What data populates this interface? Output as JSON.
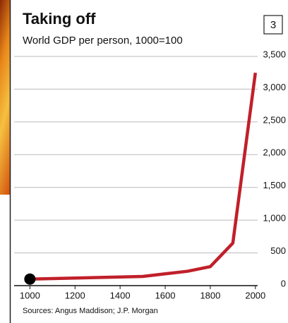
{
  "chart_data": {
    "type": "line",
    "title": "Taking off",
    "subtitle": "World GDP per person, 1000=100",
    "chart_number": "3",
    "source": "Sources: Angus Maddison; J.P. Morgan",
    "x": [
      1000,
      1500,
      1600,
      1700,
      1800,
      1900,
      2000
    ],
    "values": [
      100,
      140,
      180,
      220,
      290,
      650,
      3250
    ],
    "color": "#c0202a",
    "marker_color": "#000000",
    "xlim": [
      930,
      2010
    ],
    "xticks": [
      1000,
      1200,
      1400,
      1600,
      1800,
      2000
    ],
    "ylim": [
      0,
      3500
    ],
    "yticks": [
      0,
      500,
      {
        "value": 1000,
        "label": "1,000"
      },
      {
        "value": 1500,
        "label": "1,500"
      },
      {
        "value": 2000,
        "label": "2,000"
      },
      {
        "value": 2500,
        "label": "2,500"
      },
      {
        "value": 3000,
        "label": "3,000"
      },
      {
        "value": 3500,
        "label": "3,500"
      }
    ],
    "grid": true
  }
}
